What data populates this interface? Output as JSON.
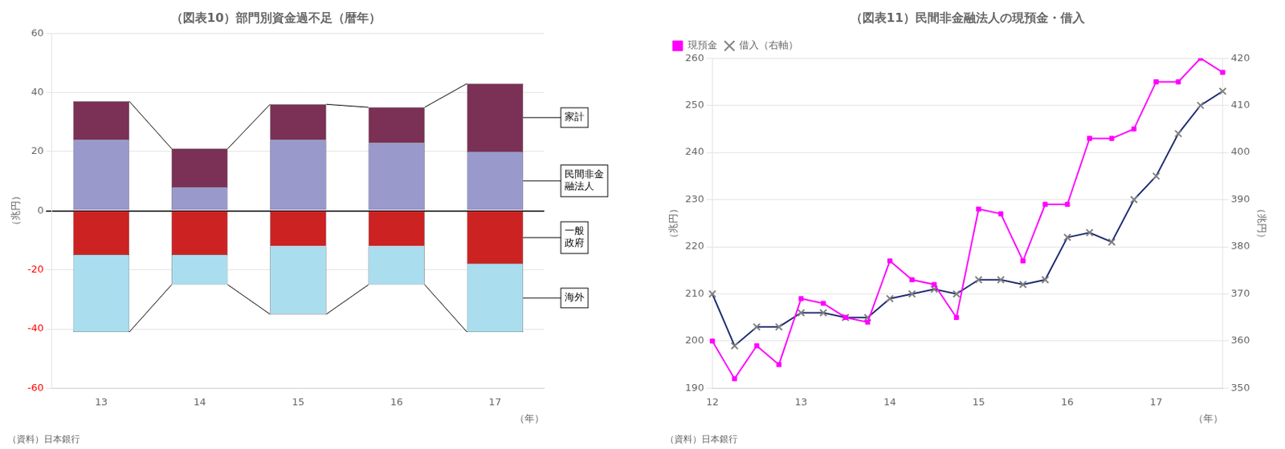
{
  "chart_data": [
    {
      "type": "bar",
      "title": "（図表10）部門別資金過不足（暦年）",
      "ylabel": "（兆円）",
      "xlabel": "（年）",
      "annotations": [
        "（資料）日本銀行"
      ],
      "categories": [
        "13",
        "14",
        "15",
        "16",
        "17"
      ],
      "series": [
        {
          "name": "民間非金\n融法人",
          "color": "#9999CC",
          "values": [
            24,
            8,
            24,
            23,
            20
          ]
        },
        {
          "name": "家計",
          "color": "#7B3055",
          "values": [
            13,
            13,
            12,
            12,
            23
          ]
        },
        {
          "name": "一般\n政府",
          "color": "#CC2222",
          "values": [
            -15,
            -15,
            -12,
            -12,
            -18
          ]
        },
        {
          "name": "海外",
          "color": "#AADDEE",
          "values": [
            -26,
            -10,
            -23,
            -13,
            -23
          ]
        }
      ],
      "stacked": true,
      "ylim": [
        -60,
        60
      ],
      "yticks": [
        -60,
        -40,
        -20,
        0,
        20,
        40,
        60
      ],
      "grid": "y"
    },
    {
      "type": "line",
      "title": "（図表11）民間非金融法人の現預金・借入",
      "ylabel": "（兆円）",
      "y2label": "（兆円）",
      "xlabel": "（年）",
      "annotations": [
        "（資料）日本銀行"
      ],
      "categories": [
        "12",
        null,
        null,
        null,
        "13",
        null,
        null,
        null,
        "14",
        null,
        null,
        null,
        "15",
        null,
        null,
        null,
        "16",
        null,
        null,
        null,
        "17",
        null,
        null,
        null
      ],
      "series": [
        {
          "name": "現預金",
          "color": "#FF00FF",
          "marker": "square",
          "values": [
            200,
            192,
            199,
            195,
            209,
            208,
            205,
            204,
            217,
            213,
            212,
            205,
            228,
            227,
            217,
            229,
            229,
            243,
            243,
            245,
            255,
            255,
            260,
            257
          ]
        },
        {
          "name": "借入（右軸）",
          "color": "#1C2A6E",
          "marker": "x",
          "axis": "y2",
          "values": [
            370,
            359,
            363,
            363,
            366,
            366,
            365,
            365,
            369,
            370,
            371,
            370,
            373,
            373,
            372,
            373,
            382,
            383,
            381,
            390,
            395,
            404,
            410,
            413
          ]
        }
      ],
      "ylim": [
        190,
        260
      ],
      "yticks": [
        190,
        200,
        210,
        220,
        230,
        240,
        250,
        260
      ],
      "y2lim": [
        350,
        420
      ],
      "y2ticks": [
        350,
        360,
        370,
        380,
        390,
        400,
        410,
        420
      ],
      "legend": "upper left",
      "grid": "y"
    }
  ]
}
